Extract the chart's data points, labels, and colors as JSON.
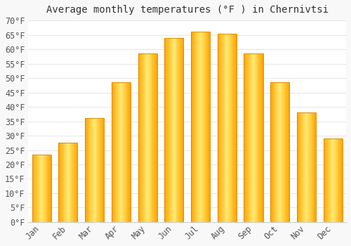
{
  "title": "Average monthly temperatures (°F ) in Chernivtsi",
  "months": [
    "Jan",
    "Feb",
    "Mar",
    "Apr",
    "May",
    "Jun",
    "Jul",
    "Aug",
    "Sep",
    "Oct",
    "Nov",
    "Dec"
  ],
  "values": [
    23.5,
    27.5,
    36.0,
    48.5,
    58.5,
    64.0,
    66.0,
    65.5,
    58.5,
    48.5,
    38.0,
    29.0
  ],
  "bar_color_main": "#FFA500",
  "bar_color_light": "#FFE680",
  "bar_color_edge": "#E08C00",
  "background_color": "#f8f8f8",
  "plot_bg_color": "#ffffff",
  "grid_color": "#e0e0e0",
  "tick_label_color": "#555555",
  "title_color": "#333333",
  "ylim": [
    0,
    70
  ],
  "yticks": [
    0,
    5,
    10,
    15,
    20,
    25,
    30,
    35,
    40,
    45,
    50,
    55,
    60,
    65,
    70
  ],
  "title_fontsize": 10,
  "tick_fontsize": 8.5,
  "bar_width": 0.72
}
